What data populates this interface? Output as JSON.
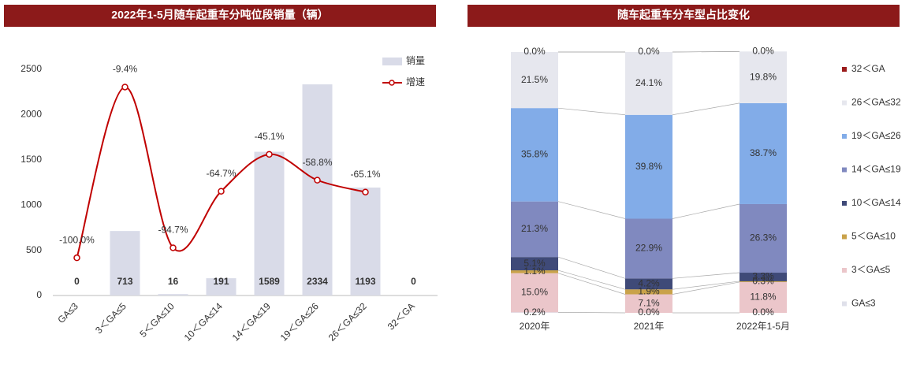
{
  "chart_data": [
    {
      "type": "bar",
      "title": "2022年1-5月随车起重车分吨位段销量（辆）",
      "categories": [
        "GA≤3",
        "3＜GA≤5",
        "5＜GA≤10",
        "10＜GA≤14",
        "14＜GA≤19",
        "19＜GA≤26",
        "26＜GA≤32",
        "32＜GA"
      ],
      "series": [
        {
          "name": "销量",
          "type": "bar",
          "color": "#d9dbe8",
          "values": [
            0,
            713,
            16,
            191,
            1589,
            2334,
            1193,
            0
          ]
        },
        {
          "name": "增速",
          "type": "line",
          "axis": "y2",
          "color": "#c00000",
          "values": [
            -100.0,
            -9.4,
            -94.7,
            -64.7,
            -45.1,
            -58.8,
            -65.1,
            null
          ],
          "value_labels": [
            "-100.0%",
            "-9.4%",
            "-94.7%",
            "-64.7%",
            "-45.1%",
            "-58.8%",
            "-65.1%",
            null
          ]
        }
      ],
      "ylim": [
        0,
        2500
      ],
      "yticks": [
        0,
        500,
        1000,
        1500,
        2000,
        2500
      ],
      "y2lim": [
        -120,
        0
      ]
    },
    {
      "type": "stacked_bar",
      "title": "随车起重车分车型占比变化",
      "categories": [
        "2020年",
        "2021年",
        "2022年1-5月"
      ],
      "ylim": [
        0,
        100
      ],
      "series": [
        {
          "name": "GA≤3",
          "color": "#dfe0ea",
          "values": [
            0.2,
            0.0,
            0.0
          ],
          "value_labels": [
            "0.2%",
            "0.0%",
            "0.0%"
          ]
        },
        {
          "name": "3＜GA≤5",
          "color": "#ebc6ca",
          "values": [
            15.0,
            7.1,
            11.8
          ],
          "value_labels": [
            "15.0%",
            "7.1%",
            "11.8%"
          ]
        },
        {
          "name": "5＜GA≤10",
          "color": "#c9a24a",
          "values": [
            1.1,
            1.9,
            0.3
          ],
          "value_labels": [
            "1.1%",
            "1.9%",
            "0.3%"
          ]
        },
        {
          "name": "10＜GA≤14",
          "color": "#3f4a78",
          "values": [
            5.1,
            4.2,
            3.3
          ],
          "value_labels": [
            "5.1%",
            "4.2%",
            "3.3%"
          ]
        },
        {
          "name": "14＜GA≤19",
          "color": "#8089bf",
          "values": [
            21.3,
            22.9,
            26.3
          ],
          "value_labels": [
            "21.3%",
            "22.9%",
            "26.3%"
          ]
        },
        {
          "name": "19＜GA≤26",
          "color": "#82ace8",
          "values": [
            35.8,
            39.8,
            38.7
          ],
          "value_labels": [
            "35.8%",
            "39.8%",
            "38.7%"
          ]
        },
        {
          "name": "26＜GA≤32",
          "color": "#e6e7ee",
          "values": [
            21.5,
            24.1,
            19.8
          ],
          "value_labels": [
            "21.5%",
            "24.1%",
            "19.8%"
          ]
        },
        {
          "name": "32＜GA",
          "color": "#9b1c1c",
          "values": [
            0.0,
            0.0,
            0.0
          ],
          "value_labels": [
            "0.0%",
            "0.0%",
            "0.0%"
          ]
        }
      ]
    }
  ]
}
